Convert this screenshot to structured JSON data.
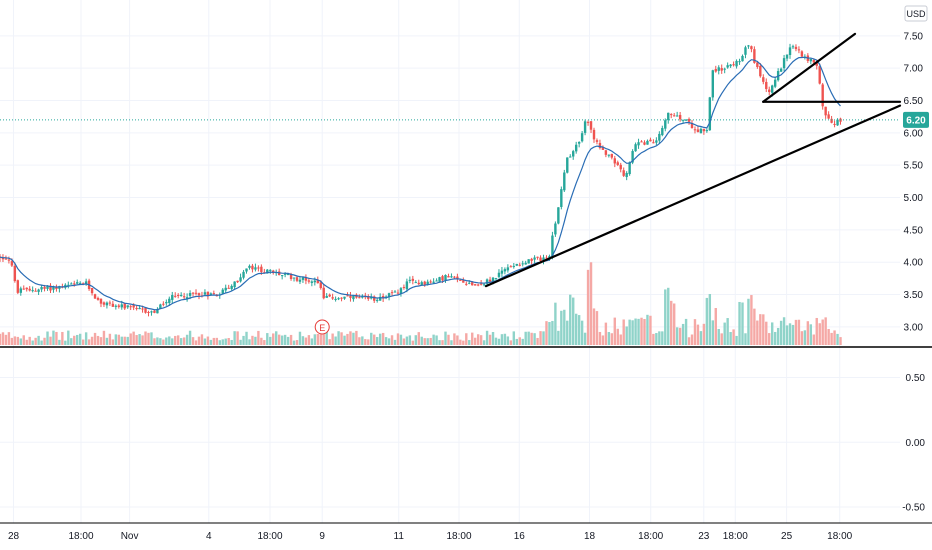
{
  "chart_data": {
    "type": "candlestick",
    "currency": "USD",
    "last_price": "6.20",
    "colors": {
      "up": "#26a69a",
      "down": "#ef5350",
      "vwap": "#2a6db5",
      "vol_up": "#8fd3c9",
      "vol_down": "#f5a8a5",
      "price_line": "#26a69a",
      "grid": "#f0f3fa",
      "axis_text": "#131722",
      "drawing": "#000000",
      "earnings": "#e53935"
    },
    "price_axis": {
      "range": [
        2.72,
        7.93
      ],
      "ticks": [
        "7.50",
        "7.00",
        "6.50",
        "6.00",
        "5.50",
        "5.00",
        "4.50",
        "4.00",
        "3.50",
        "3.00"
      ]
    },
    "oscillator_axis": {
      "range": [
        -0.6,
        0.72
      ],
      "ticks": [
        "0.50",
        "0.00",
        "-0.50"
      ]
    },
    "x_axis": {
      "range": [
        0,
        1000
      ],
      "ticks": [
        {
          "label": "28",
          "x": 15
        },
        {
          "label": "18:00",
          "x": 90
        },
        {
          "label": "Nov",
          "x": 144
        },
        {
          "label": "4",
          "x": 232
        },
        {
          "label": "18:00",
          "x": 300
        },
        {
          "label": "9",
          "x": 358
        },
        {
          "label": "11",
          "x": 443
        },
        {
          "label": "18:00",
          "x": 510
        },
        {
          "label": "16",
          "x": 577
        },
        {
          "label": "18",
          "x": 655
        },
        {
          "label": "18:00",
          "x": 723
        },
        {
          "label": "23",
          "x": 782
        },
        {
          "label": "18:00",
          "x": 817
        },
        {
          "label": "25",
          "x": 874
        },
        {
          "label": "18:00",
          "x": 933
        }
      ]
    },
    "price_key_points": [
      [
        0,
        4.08
      ],
      [
        12,
        4.05
      ],
      [
        18,
        3.55
      ],
      [
        40,
        3.58
      ],
      [
        70,
        3.62
      ],
      [
        95,
        3.68
      ],
      [
        110,
        3.38
      ],
      [
        140,
        3.3
      ],
      [
        170,
        3.22
      ],
      [
        190,
        3.45
      ],
      [
        220,
        3.52
      ],
      [
        240,
        3.5
      ],
      [
        262,
        3.68
      ],
      [
        275,
        3.92
      ],
      [
        300,
        3.85
      ],
      [
        330,
        3.75
      ],
      [
        355,
        3.7
      ],
      [
        360,
        3.45
      ],
      [
        390,
        3.45
      ],
      [
        410,
        3.42
      ],
      [
        440,
        3.52
      ],
      [
        455,
        3.7
      ],
      [
        480,
        3.68
      ],
      [
        495,
        3.78
      ],
      [
        530,
        3.65
      ],
      [
        545,
        3.72
      ],
      [
        570,
        3.97
      ],
      [
        610,
        4.08
      ],
      [
        618,
        4.7
      ],
      [
        630,
        5.6
      ],
      [
        645,
        5.9
      ],
      [
        652,
        6.25
      ],
      [
        662,
        5.85
      ],
      [
        680,
        5.6
      ],
      [
        695,
        5.3
      ],
      [
        705,
        5.85
      ],
      [
        730,
        5.85
      ],
      [
        742,
        6.3
      ],
      [
        760,
        6.2
      ],
      [
        775,
        6.05
      ],
      [
        787,
        6.05
      ],
      [
        790,
        6.95
      ],
      [
        805,
        7.0
      ],
      [
        825,
        7.15
      ],
      [
        830,
        7.45
      ],
      [
        845,
        6.85
      ],
      [
        855,
        6.6
      ],
      [
        870,
        7.1
      ],
      [
        880,
        7.35
      ],
      [
        895,
        7.15
      ],
      [
        908,
        7.05
      ],
      [
        915,
        6.35
      ],
      [
        925,
        6.15
      ],
      [
        937,
        6.2
      ]
    ],
    "volume_spikes": [
      [
        617,
        0.55
      ],
      [
        626,
        0.42
      ],
      [
        636,
        0.6
      ],
      [
        642,
        0.4
      ],
      [
        655,
        1.0
      ],
      [
        662,
        0.45
      ],
      [
        700,
        0.3
      ],
      [
        722,
        0.4
      ],
      [
        740,
        0.75
      ],
      [
        748,
        0.55
      ],
      [
        786,
        0.65
      ],
      [
        795,
        0.5
      ],
      [
        824,
        0.58
      ],
      [
        832,
        0.6
      ],
      [
        838,
        0.5
      ],
      [
        847,
        0.38
      ],
      [
        870,
        0.32
      ],
      [
        887,
        0.33
      ],
      [
        912,
        0.28
      ]
    ],
    "trendlines": [
      {
        "name": "rising-support",
        "from": [
          540,
          3.63
        ],
        "to": [
          1000,
          6.42
        ]
      },
      {
        "name": "resistance",
        "from": [
          848,
          6.48
        ],
        "to": [
          1000,
          6.48
        ]
      },
      {
        "name": "upper-channel",
        "from": [
          848,
          6.48
        ],
        "to": [
          950,
          7.53
        ]
      }
    ],
    "events": [
      {
        "label": "E",
        "x": 358
      }
    ]
  }
}
